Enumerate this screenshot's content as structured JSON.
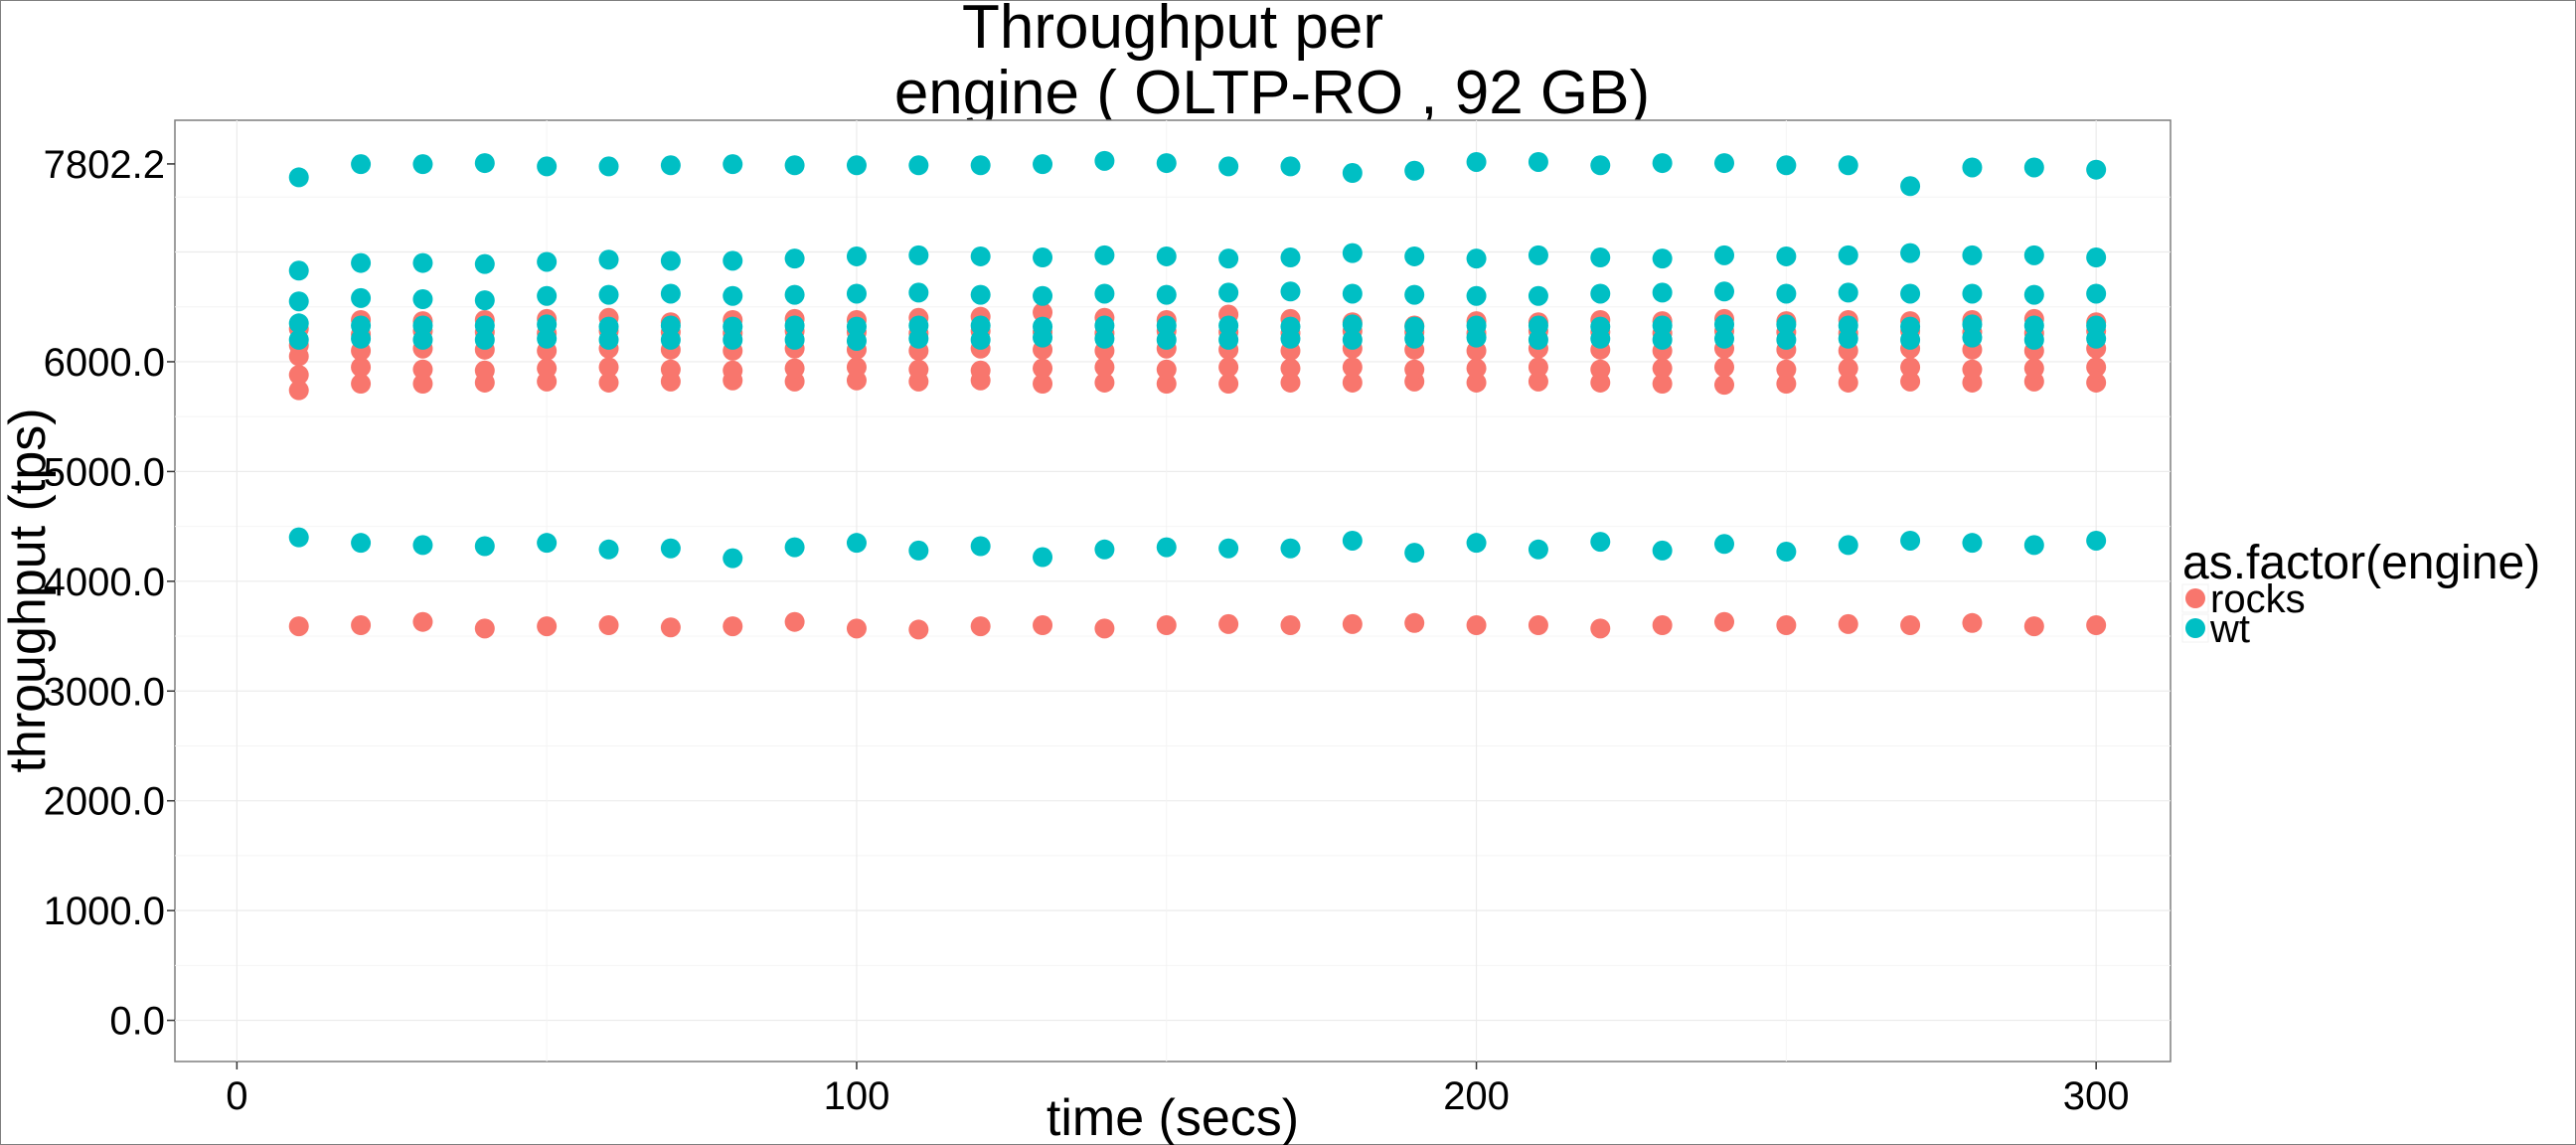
{
  "chart_data": {
    "type": "scatter",
    "title_lines": [
      "Throughput per",
      "engine ( OLTP-RO ,  92 GB)"
    ],
    "xlabel": "time (secs)",
    "ylabel": "throughput (tps)",
    "xlim": [
      -10,
      312
    ],
    "ylim": [
      -375,
      8200
    ],
    "x_ticks": [
      0,
      100,
      200,
      300
    ],
    "x_tick_labels": [
      "0",
      "100",
      "200",
      "300"
    ],
    "y_ticks": [
      0,
      1000,
      2000,
      3000,
      4000,
      5000,
      6000,
      7802.2
    ],
    "y_tick_labels": [
      "0.0",
      "1000.0",
      "2000.0",
      "3000.0",
      "4000.0",
      "5000.0",
      "6000.0",
      "7802.2"
    ],
    "grid": true,
    "legend_title": "as.factor(engine)",
    "legend_position": "right",
    "x": [
      10,
      20,
      30,
      40,
      50,
      60,
      70,
      80,
      90,
      100,
      110,
      120,
      130,
      140,
      150,
      160,
      170,
      180,
      190,
      200,
      210,
      220,
      230,
      240,
      250,
      260,
      270,
      280,
      290,
      300
    ],
    "series": [
      {
        "name": "rocks",
        "color": "#F8766D",
        "level_profiles": [
          [
            5740,
            5800,
            5800,
            5810,
            5820,
            5810,
            5820,
            5830,
            5820,
            5830,
            5820,
            5830,
            5800,
            5810,
            5800,
            5800,
            5810,
            5810,
            5820,
            5810,
            5820,
            5810,
            5800,
            5790,
            5800,
            5810,
            5820,
            5810,
            5820,
            5810
          ],
          [
            5880,
            5950,
            5930,
            5920,
            5940,
            5950,
            5930,
            5920,
            5940,
            5950,
            5930,
            5920,
            5940,
            5950,
            5930,
            5950,
            5940,
            5950,
            5930,
            5940,
            5950,
            5930,
            5940,
            5950,
            5930,
            5940,
            5950,
            5930,
            5940,
            5950
          ],
          [
            6050,
            6100,
            6120,
            6110,
            6100,
            6120,
            6110,
            6100,
            6120,
            6110,
            6100,
            6120,
            6110,
            6100,
            6120,
            6110,
            6100,
            6120,
            6110,
            6100,
            6120,
            6110,
            6100,
            6120,
            6110,
            6100,
            6120,
            6110,
            6100,
            6120
          ],
          [
            6150,
            6250,
            6280,
            6270,
            6260,
            6280,
            6270,
            6260,
            6280,
            6270,
            6260,
            6280,
            6270,
            6260,
            6280,
            6270,
            6260,
            6280,
            6270,
            6260,
            6280,
            6270,
            6260,
            6280,
            6270,
            6260,
            6280,
            6270,
            6260,
            6280
          ],
          [
            6300,
            6380,
            6370,
            6380,
            6390,
            6400,
            6360,
            6380,
            6390,
            6380,
            6400,
            6410,
            6450,
            6400,
            6380,
            6430,
            6390,
            6360,
            6330,
            6370,
            6360,
            6380,
            6370,
            6390,
            6370,
            6380,
            6370,
            6380,
            6390,
            6360
          ],
          [
            3590,
            3600,
            3630,
            3570,
            3590,
            3600,
            3580,
            3590,
            3630,
            3570,
            3560,
            3590,
            3600,
            3570,
            3600,
            3610,
            3600,
            3610,
            3620,
            3600,
            3600,
            3570,
            3600,
            3630,
            3600,
            3610,
            3600,
            3620,
            3590,
            3600
          ]
        ]
      },
      {
        "name": "wt",
        "color": "#00BFC4",
        "level_profiles": [
          [
            7680,
            7800,
            7800,
            7810,
            7780,
            7780,
            7790,
            7800,
            7790,
            7790,
            7790,
            7790,
            7800,
            7830,
            7810,
            7780,
            7780,
            7720,
            7740,
            7820,
            7820,
            7790,
            7810,
            7810,
            7790,
            7790,
            7600,
            7770,
            7770,
            7750
          ],
          [
            6830,
            6900,
            6900,
            6890,
            6910,
            6930,
            6920,
            6920,
            6940,
            6960,
            6970,
            6960,
            6950,
            6970,
            6960,
            6940,
            6950,
            6990,
            6960,
            6940,
            6970,
            6950,
            6940,
            6970,
            6960,
            6970,
            6990,
            6970,
            6970,
            6950
          ],
          [
            6550,
            6580,
            6570,
            6560,
            6600,
            6610,
            6620,
            6600,
            6610,
            6620,
            6630,
            6610,
            6600,
            6620,
            6610,
            6630,
            6640,
            6620,
            6610,
            6600,
            6600,
            6620,
            6630,
            6640,
            6620,
            6630,
            6620,
            6620,
            6610,
            6620
          ],
          [
            6350,
            6330,
            6330,
            6330,
            6340,
            6320,
            6330,
            6320,
            6330,
            6320,
            6330,
            6330,
            6320,
            6330,
            6330,
            6330,
            6320,
            6340,
            6320,
            6330,
            6330,
            6320,
            6330,
            6340,
            6340,
            6330,
            6320,
            6340,
            6330,
            6330
          ],
          [
            6200,
            6210,
            6200,
            6200,
            6210,
            6200,
            6200,
            6200,
            6200,
            6190,
            6210,
            6200,
            6220,
            6210,
            6200,
            6200,
            6210,
            6200,
            6210,
            6220,
            6200,
            6210,
            6200,
            6210,
            6200,
            6210,
            6200,
            6220,
            6200,
            6210
          ],
          [
            4400,
            4350,
            4330,
            4320,
            4350,
            4290,
            4300,
            4210,
            4310,
            4350,
            4280,
            4320,
            4220,
            4290,
            4310,
            4300,
            4300,
            4370,
            4260,
            4350,
            4290,
            4360,
            4280,
            4340,
            4270,
            4330,
            4370,
            4350,
            4330,
            4370
          ]
        ]
      }
    ]
  }
}
